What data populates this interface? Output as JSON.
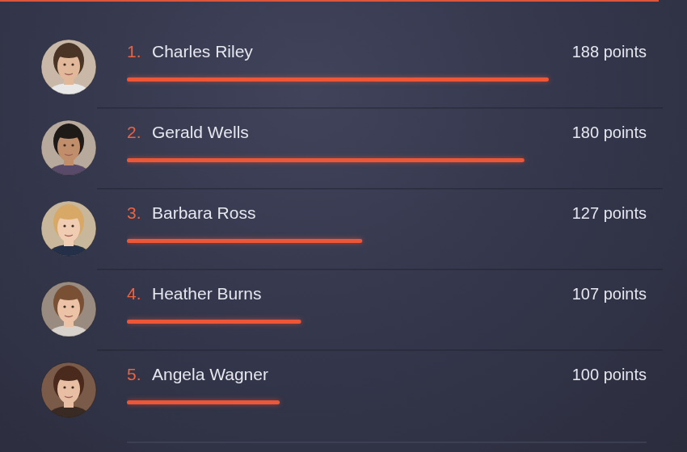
{
  "chart_data": {
    "type": "bar",
    "orientation": "horizontal",
    "categories": [
      "Charles Riley",
      "Gerald Wells",
      "Barbara Ross",
      "Heather Burns",
      "Angela Wagner"
    ],
    "rank_labels": [
      "1.",
      "2.",
      "3.",
      "4.",
      "5."
    ],
    "values": [
      188,
      180,
      127,
      107,
      100
    ],
    "value_labels": [
      "188 points",
      "180 points",
      "127 points",
      "107 points",
      "100 points"
    ],
    "data_labels": true,
    "color": "#ee5638",
    "xlim": [
      50,
      220
    ],
    "tick_labels": false,
    "grid": false
  }
}
